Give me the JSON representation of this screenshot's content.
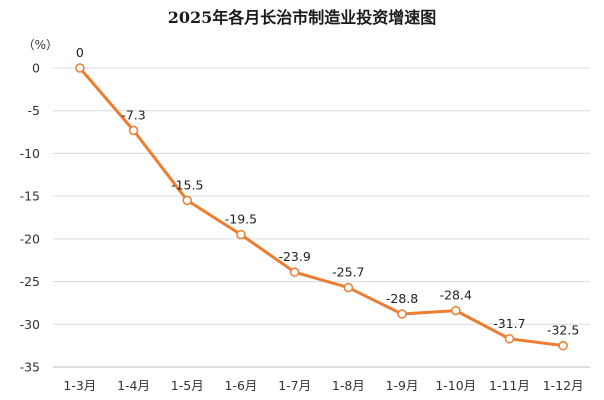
{
  "chart_data": {
    "type": "line",
    "title": "2025年各月长治市制造业投资增速图",
    "unit_label": "（%）",
    "categories": [
      "1-3月",
      "1-4月",
      "1-5月",
      "1-6月",
      "1-7月",
      "1-8月",
      "1-9月",
      "1-10月",
      "1-11月",
      "1-12月"
    ],
    "values": [
      0,
      -7.3,
      -15.5,
      -19.5,
      -23.9,
      -25.7,
      -28.8,
      -28.4,
      -31.7,
      -32.5
    ],
    "data_labels": [
      "0",
      "-7.3",
      "-15.5",
      "-19.5",
      "-23.9",
      "-25.7",
      "-28.8",
      "-28.4",
      "-31.7",
      "-32.5"
    ],
    "ylim": [
      -35,
      0
    ],
    "yticks": [
      0,
      -5,
      -10,
      -15,
      -20,
      -25,
      -30,
      -35
    ],
    "ytick_labels": [
      "0",
      "-5",
      "-10",
      "-15",
      "-20",
      "-25",
      "-30",
      "-35"
    ],
    "grid": true,
    "colors": {
      "line": "#ED7D31",
      "marker_fill": "#ffffff"
    }
  }
}
